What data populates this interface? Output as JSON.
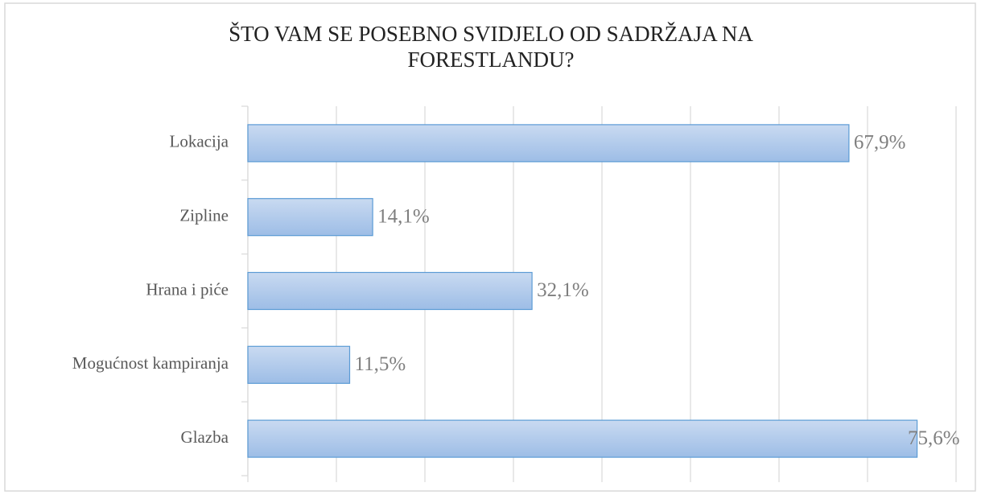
{
  "chart_data": {
    "type": "bar",
    "orientation": "horizontal",
    "title": "ŠTO VAM SE POSEBNO SVIDJELO OD SADRŽAJA NA FORESTLANDU?",
    "categories": [
      "Lokacija",
      "Zipline",
      "Hrana i piće",
      "Mogućnost kampiranja",
      "Glazba"
    ],
    "values": [
      67.9,
      14.1,
      32.1,
      11.5,
      75.6
    ],
    "value_labels": [
      "67,9%",
      "14,1%",
      "32,1%",
      "11,5%",
      "75,6%"
    ],
    "color": "#a9c4ea",
    "xlim": [
      0,
      80
    ],
    "xticks": [
      0,
      10,
      20,
      30,
      40,
      50,
      60,
      70,
      80
    ],
    "grid": true
  }
}
